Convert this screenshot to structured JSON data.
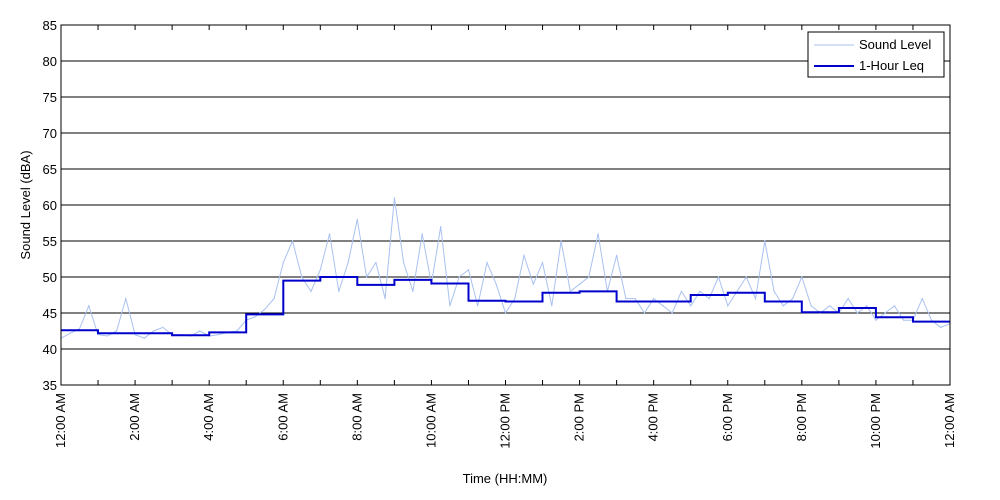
{
  "chart_data": {
    "type": "line",
    "xlabel": "Time (HH:MM)",
    "ylabel": "Sound Level (dBA)",
    "xlim": [
      0,
      24
    ],
    "ylim": [
      35,
      85
    ],
    "y_ticks": [
      35,
      40,
      45,
      50,
      55,
      60,
      65,
      70,
      75,
      80,
      85
    ],
    "x_ticks": [
      {
        "hour": 0,
        "label": "12:00 AM"
      },
      {
        "hour": 2,
        "label": "2:00 AM"
      },
      {
        "hour": 4,
        "label": "4:00 AM"
      },
      {
        "hour": 6,
        "label": "6:00 AM"
      },
      {
        "hour": 8,
        "label": "8:00 AM"
      },
      {
        "hour": 10,
        "label": "10:00 AM"
      },
      {
        "hour": 12,
        "label": "12:00 PM"
      },
      {
        "hour": 14,
        "label": "2:00 PM"
      },
      {
        "hour": 16,
        "label": "4:00 PM"
      },
      {
        "hour": 18,
        "label": "6:00 PM"
      },
      {
        "hour": 20,
        "label": "8:00 PM"
      },
      {
        "hour": 22,
        "label": "10:00 PM"
      },
      {
        "hour": 24,
        "label": "12:00 AM"
      }
    ],
    "grid": "horizontal",
    "legend_position": "top-right",
    "series": [
      {
        "name": "Sound Level",
        "color": "#a9c1f0",
        "style": "thin noisy line",
        "x": [
          0,
          0.25,
          0.5,
          0.75,
          1,
          1.25,
          1.5,
          1.75,
          2,
          2.25,
          2.5,
          2.75,
          3,
          3.25,
          3.5,
          3.75,
          4,
          4.25,
          4.5,
          4.75,
          5,
          5.25,
          5.5,
          5.75,
          6,
          6.25,
          6.5,
          6.75,
          7,
          7.25,
          7.5,
          7.75,
          8,
          8.25,
          8.5,
          8.75,
          9,
          9.25,
          9.5,
          9.75,
          10,
          10.25,
          10.5,
          10.75,
          11,
          11.25,
          11.5,
          11.75,
          12,
          12.25,
          12.5,
          12.75,
          13,
          13.25,
          13.5,
          13.75,
          14,
          14.25,
          14.5,
          14.75,
          15,
          15.25,
          15.5,
          15.75,
          16,
          16.25,
          16.5,
          16.75,
          17,
          17.25,
          17.5,
          17.75,
          18,
          18.25,
          18.5,
          18.75,
          19,
          19.25,
          19.5,
          19.75,
          20,
          20.25,
          20.5,
          20.75,
          21,
          21.25,
          21.5,
          21.75,
          22,
          22.25,
          22.5,
          22.75,
          23,
          23.25,
          23.5,
          23.75,
          24
        ],
        "values": [
          41.5,
          42.2,
          42.8,
          46,
          42,
          41.8,
          42.5,
          47,
          42,
          41.5,
          42.5,
          43,
          42,
          42,
          41.8,
          42.5,
          41.8,
          42,
          42.3,
          42.5,
          44,
          44.5,
          45.5,
          47,
          52,
          55,
          50,
          48,
          51,
          56,
          48,
          52,
          58,
          50,
          52,
          47,
          61,
          52,
          48,
          56,
          49,
          57,
          46,
          50,
          51,
          46,
          52,
          49,
          45,
          47,
          53,
          49,
          52,
          46,
          55,
          48,
          49,
          50,
          56,
          48,
          53,
          47,
          47,
          45,
          47,
          46,
          45,
          48,
          46,
          48,
          47,
          50,
          46,
          48,
          50,
          47,
          55,
          48,
          46,
          47,
          50,
          46,
          45,
          46,
          45,
          47,
          45,
          46,
          44,
          45,
          46,
          44,
          44,
          47,
          44,
          43,
          43.5
        ]
      },
      {
        "name": "1-Hour Leq",
        "color": "#0000cc",
        "style": "step",
        "hours": [
          0,
          1,
          2,
          3,
          4,
          5,
          6,
          7,
          8,
          9,
          10,
          11,
          12,
          13,
          14,
          15,
          16,
          17,
          18,
          19,
          20,
          21,
          22,
          23
        ],
        "values": [
          42.6,
          42.2,
          42.2,
          41.9,
          42.3,
          44.8,
          49.5,
          50.0,
          48.9,
          49.6,
          49.1,
          46.7,
          46.6,
          47.8,
          48.0,
          46.6,
          46.6,
          47.5,
          47.8,
          46.6,
          45.1,
          45.7,
          44.4,
          43.8
        ]
      }
    ]
  }
}
